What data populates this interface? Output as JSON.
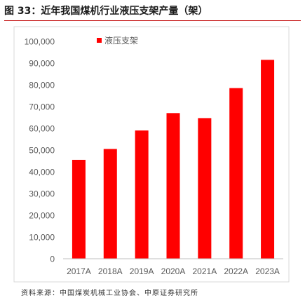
{
  "figure_title": "图 33：近年我国煤机行业液压支架产量（架）",
  "source_note": "资料来源：中国煤炭机械工业协会、中原证券研究所",
  "colors": {
    "bar": "#ff0000",
    "rule": "#c00000"
  },
  "chart_data": {
    "type": "bar",
    "title": "",
    "xlabel": "",
    "ylabel": "",
    "categories": [
      "2017A",
      "2018A",
      "2019A",
      "2020A",
      "2021A",
      "2022A",
      "2023A"
    ],
    "series": [
      {
        "name": "液压支架",
        "values": [
          45500,
          50500,
          59000,
          67000,
          64700,
          78500,
          91500
        ]
      }
    ],
    "ylim": [
      0,
      100000
    ],
    "yticks": [
      0,
      10000,
      20000,
      30000,
      40000,
      50000,
      60000,
      70000,
      80000,
      90000,
      100000
    ],
    "ytick_labels": [
      "0",
      "10,000",
      "20,000",
      "30,000",
      "40,000",
      "50,000",
      "60,000",
      "70,000",
      "80,000",
      "90,000",
      "100,000"
    ],
    "grid": false,
    "legend_position": "top-left"
  }
}
